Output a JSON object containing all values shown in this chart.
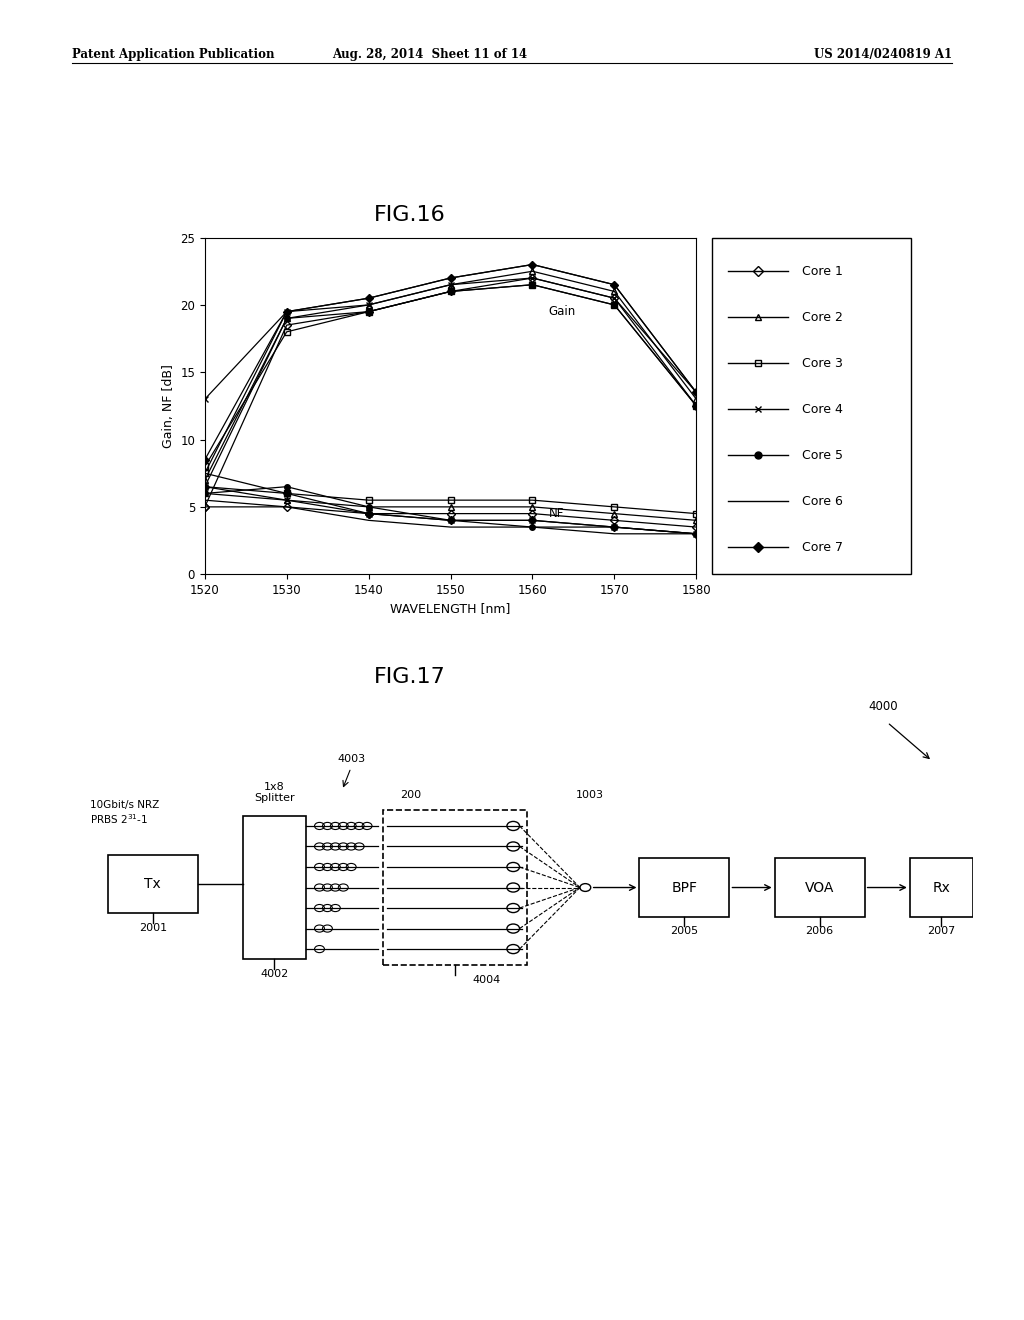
{
  "header_left": "Patent Application Publication",
  "header_mid": "Aug. 28, 2014  Sheet 11 of 14",
  "header_right": "US 2014/0240819 A1",
  "fig16_title": "FIG.16",
  "fig17_title": "FIG.17",
  "wavelengths": [
    1520,
    1530,
    1540,
    1550,
    1560,
    1570,
    1580
  ],
  "gain_data": {
    "core1": [
      5.0,
      18.5,
      19.5,
      21.0,
      22.0,
      20.5,
      12.5
    ],
    "core2": [
      7.0,
      19.0,
      20.0,
      21.5,
      22.5,
      21.0,
      13.0
    ],
    "core3": [
      8.0,
      18.0,
      19.5,
      21.0,
      21.5,
      20.0,
      12.5
    ],
    "core4": [
      13.0,
      19.5,
      20.0,
      21.5,
      22.0,
      20.5,
      13.5
    ],
    "core5": [
      6.5,
      19.0,
      19.5,
      21.0,
      21.5,
      20.0,
      12.5
    ],
    "core6": [
      7.5,
      19.5,
      20.5,
      22.0,
      23.0,
      21.5,
      13.5
    ],
    "core7": [
      8.5,
      19.5,
      20.5,
      22.0,
      23.0,
      21.5,
      13.5
    ]
  },
  "nf_data": {
    "core1": [
      5.0,
      5.0,
      4.5,
      4.5,
      4.5,
      4.0,
      3.5
    ],
    "core2": [
      6.0,
      5.5,
      5.0,
      5.0,
      5.0,
      4.5,
      4.0
    ],
    "core3": [
      7.5,
      6.0,
      5.5,
      5.5,
      5.5,
      5.0,
      4.5
    ],
    "core4": [
      6.5,
      5.5,
      4.5,
      4.0,
      4.0,
      3.5,
      3.0
    ],
    "core5": [
      6.0,
      6.5,
      5.0,
      4.0,
      3.5,
      3.5,
      3.0
    ],
    "core6": [
      5.5,
      5.0,
      4.0,
      3.5,
      3.5,
      3.0,
      3.0
    ],
    "core7": [
      6.5,
      6.0,
      4.5,
      4.0,
      4.0,
      3.5,
      3.0
    ]
  },
  "xlabel": "WAVELENGTH [nm]",
  "ylabel": "Gain, NF [dB]",
  "ylim": [
    0,
    25
  ],
  "yticks": [
    0,
    5,
    10,
    15,
    20,
    25
  ],
  "xlim": [
    1520,
    1580
  ],
  "xticks": [
    1520,
    1530,
    1540,
    1550,
    1560,
    1570,
    1580
  ],
  "gain_label": "Gain",
  "nf_label": "NF",
  "background_color": "#ffffff"
}
